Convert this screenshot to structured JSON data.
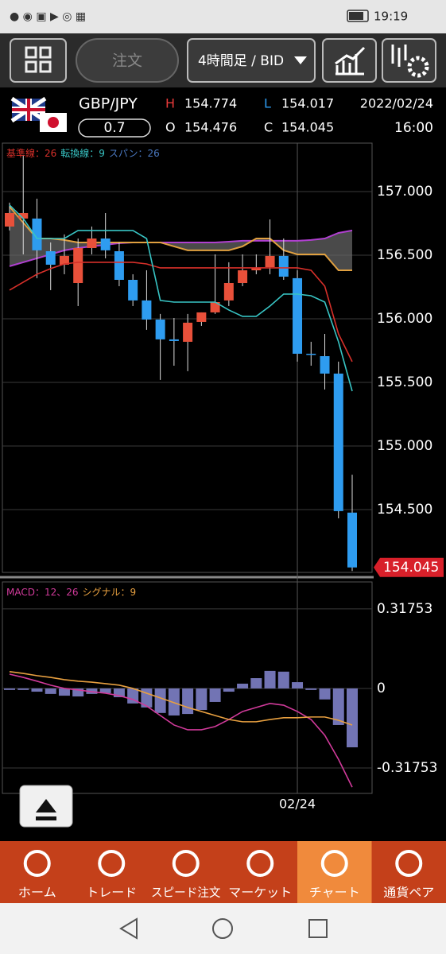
{
  "status_bar": {
    "time": "19:19"
  },
  "toolbar": {
    "order": "注文",
    "timeframe": "4時間足 / BID"
  },
  "header": {
    "symbol": "GBP/JPY",
    "spread": "0.7",
    "high_label": "H",
    "high": "154.774",
    "low_label": "L",
    "low": "154.017",
    "open_label": "O",
    "open": "154.476",
    "close_label": "C",
    "close": "154.045",
    "date": "2022/02/24",
    "time": "16:00"
  },
  "chart_data": [
    {
      "type": "candlestick",
      "categories": [
        null,
        null,
        null,
        null,
        null,
        null,
        null,
        null,
        null,
        null,
        null,
        null,
        null,
        null,
        null,
        null,
        null,
        null,
        null,
        null,
        null,
        "02/24",
        null,
        null,
        null,
        null
      ],
      "open": [
        156.725,
        156.788,
        156.788,
        156.531,
        156.425,
        156.281,
        156.556,
        156.631,
        156.531,
        156.306,
        156.144,
        155.994,
        155.838,
        155.819,
        155.975,
        156.05,
        156.144,
        156.281,
        156.381,
        156.406,
        156.494,
        156.319,
        155.725,
        155.706,
        155.569,
        154.476
      ],
      "high": [
        156.913,
        157.288,
        156.944,
        156.6,
        156.663,
        156.631,
        156.725,
        156.831,
        156.6,
        156.35,
        156.381,
        156.038,
        156.006,
        156.038,
        156.05,
        156.506,
        156.444,
        156.506,
        156.506,
        156.781,
        156.631,
        156.381,
        155.819,
        155.881,
        155.663,
        154.774
      ],
      "low": [
        156.694,
        156.506,
        156.319,
        156.225,
        156.35,
        156.1,
        156.506,
        156.475,
        156.256,
        156.1,
        155.913,
        155.519,
        155.631,
        155.588,
        155.944,
        156.038,
        156.1,
        156.256,
        156.35,
        156.35,
        156.306,
        155.663,
        155.631,
        155.444,
        154.431,
        154.017
      ],
      "close": [
        156.831,
        156.831,
        156.538,
        156.425,
        156.494,
        156.556,
        156.631,
        156.538,
        156.306,
        156.144,
        155.994,
        155.838,
        155.825,
        155.969,
        156.05,
        156.131,
        156.281,
        156.381,
        156.4,
        156.494,
        156.331,
        155.725,
        155.719,
        155.569,
        154.488,
        154.045
      ],
      "up_color": "#e8503a",
      "down_color": "#2e9cf0",
      "indicators": [
        {
          "name": "基準線：26",
          "color": "#d8302a",
          "values": [
            156.225,
            156.288,
            156.35,
            156.394,
            156.431,
            156.444,
            156.444,
            156.444,
            156.444,
            156.444,
            156.431,
            156.4,
            156.4,
            156.4,
            156.4,
            156.4,
            156.4,
            156.4,
            156.4,
            156.4,
            156.4,
            156.4,
            156.381,
            156.256,
            155.881,
            155.663
          ]
        },
        {
          "name": "転換線：9",
          "color": "#38c4c4",
          "values": [
            156.894,
            156.788,
            156.631,
            156.631,
            156.631,
            156.694,
            156.694,
            156.694,
            156.694,
            156.694,
            156.631,
            156.144,
            156.131,
            156.131,
            156.131,
            156.131,
            156.069,
            156.019,
            156.019,
            156.1,
            156.194,
            156.194,
            156.181,
            156.131,
            155.819,
            155.431
          ]
        },
        {
          "name": "スパン：26",
          "color": "#4a78c0",
          "span_a": {
            "color": "#b040d0",
            "values": [
              156.413,
              156.444,
              156.475,
              156.506,
              156.538,
              156.556,
              156.569,
              156.581,
              156.594,
              156.6,
              156.6,
              156.6,
              156.6,
              156.6,
              156.6,
              156.6,
              156.606,
              156.613,
              156.613,
              156.613,
              156.613,
              156.613,
              156.619,
              156.631,
              156.675,
              156.694
            ]
          },
          "span_b": {
            "color": "#e0a040",
            "values": [
              156.881,
              156.756,
              156.631,
              156.631,
              156.619,
              156.6,
              156.6,
              156.6,
              156.6,
              156.6,
              156.6,
              156.6,
              156.569,
              156.538,
              156.538,
              156.538,
              156.538,
              156.569,
              156.631,
              156.631,
              156.538,
              156.506,
              156.506,
              156.506,
              156.381,
              156.381
            ]
          }
        }
      ],
      "ylim": [
        154.006,
        157.381
      ],
      "yticks": [
        {
          "value": 157,
          "label": "157.000"
        },
        {
          "value": 156.5,
          "label": "156.500"
        },
        {
          "value": 156,
          "label": "156.000"
        },
        {
          "value": 155.5,
          "label": "155.500"
        },
        {
          "value": 155,
          "label": "155.000"
        },
        {
          "value": 154.5,
          "label": "154.500"
        }
      ],
      "grid": true
    },
    {
      "type": "macd",
      "series": [
        {
          "name": "MACD：12、26",
          "color": "#d03a9a",
          "values": [
            0.057,
            0.044,
            0.029,
            0.013,
            0,
            -0.006,
            -0.013,
            -0.019,
            -0.029,
            -0.044,
            -0.07,
            -0.108,
            -0.146,
            -0.165,
            -0.165,
            -0.152,
            -0.124,
            -0.092,
            -0.076,
            -0.06,
            -0.067,
            -0.092,
            -0.124,
            -0.187,
            -0.283,
            -0.394
          ]
        },
        {
          "name": "シグナル：9",
          "color": "#e8a040",
          "values": [
            0.067,
            0.06,
            0.051,
            0.044,
            0.035,
            0.029,
            0.025,
            0.019,
            0.013,
            0,
            -0.019,
            -0.038,
            -0.057,
            -0.076,
            -0.092,
            -0.108,
            -0.124,
            -0.133,
            -0.133,
            -0.124,
            -0.117,
            -0.117,
            -0.114,
            -0.114,
            -0.127,
            -0.146
          ]
        }
      ],
      "histogram": {
        "color": "#7274b4",
        "values": [
          -0.006,
          -0.006,
          -0.013,
          -0.022,
          -0.029,
          -0.032,
          -0.022,
          -0.019,
          -0.035,
          -0.06,
          -0.076,
          -0.098,
          -0.108,
          -0.102,
          -0.086,
          -0.054,
          -0.013,
          0.019,
          0.041,
          0.07,
          0.067,
          0.025,
          -0.006,
          -0.044,
          -0.146,
          -0.235
        ]
      },
      "ylim": [
        -0.419,
        0.425
      ],
      "yticks": [
        0.31753,
        0,
        -0.31753
      ],
      "grid": true
    }
  ],
  "nav": {
    "items": [
      "ホーム",
      "トレード",
      "スピード注文",
      "マーケット",
      "チャート",
      "通貨ペア"
    ],
    "active": 4
  }
}
